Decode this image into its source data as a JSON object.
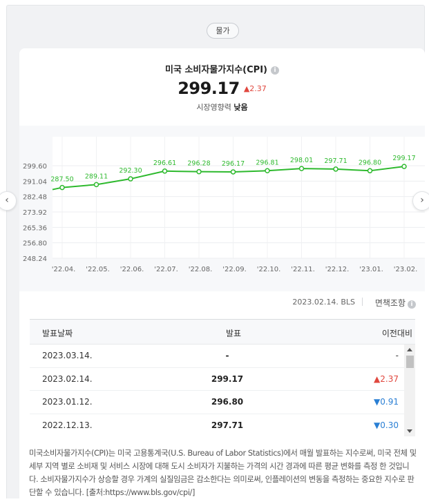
{
  "category_tag": "물가",
  "card": {
    "title": "미국 소비자물가지수(CPI)",
    "info_icon": "info-icon",
    "value": "299.17",
    "change": "▲2.37",
    "impact_label": "시장영향력",
    "impact_value": "낮음"
  },
  "chart_data": {
    "type": "line",
    "categories": [
      "'22.04.",
      "'22.05.",
      "'22.06.",
      "'22.07.",
      "'22.08.",
      "'22.09.",
      "'22.10.",
      "'22.11.",
      "'22.12.",
      "'23.01.",
      "'23.02."
    ],
    "values": [
      287.5,
      289.11,
      292.3,
      296.61,
      296.28,
      296.17,
      296.81,
      298.01,
      297.71,
      296.8,
      299.17
    ],
    "data_labels": [
      "287.50",
      "289.11",
      "292.30",
      "296.61",
      "296.28",
      "296.17",
      "296.81",
      "298.01",
      "297.71",
      "296.80",
      "299.17"
    ],
    "yticks": [
      "299.60",
      "291.04",
      "282.48",
      "273.92",
      "265.36",
      "256.80",
      "248.24"
    ],
    "ylim": [
      248.24,
      299.6
    ],
    "line_color": "#2db92d",
    "grid": true
  },
  "source": {
    "date_source": "2023.02.14. BLS",
    "disclaimer": "면책조항"
  },
  "table": {
    "headers": [
      "발표날짜",
      "발표",
      "이전대비"
    ],
    "rows": [
      {
        "date": "2023.03.14.",
        "value": "-",
        "change": "-",
        "dir": ""
      },
      {
        "date": "2023.02.14.",
        "value": "299.17",
        "change": "▲2.37",
        "dir": "up"
      },
      {
        "date": "2023.01.12.",
        "value": "296.80",
        "change": "▼0.91",
        "dir": "down"
      },
      {
        "date": "2022.12.13.",
        "value": "297.71",
        "change": "▼0.30",
        "dir": "down"
      }
    ]
  },
  "description": "미국소비자물가지수(CPI)는 미국 고용통계국(U.S. Bureau of Labor Statistics)에서 매월 발표하는 지수로써, 미국 전체 및 세부 지역 별로 소비재 및 서비스 시장에 대해 도시 소비자가 지불하는 가격의 시간 경과에 따른 평균 변화를 측정 한 것입니다. 소비자물가지수가 상승할 경우 가계의 실질임금은 감소한다는 의미로써, 인플레이션의 변동을 측정하는 중요한 지수로 판단할 수 있습니다. [출처:https://www.bls.gov/cpi/]",
  "nav": {
    "prev": "‹",
    "next": "›"
  }
}
